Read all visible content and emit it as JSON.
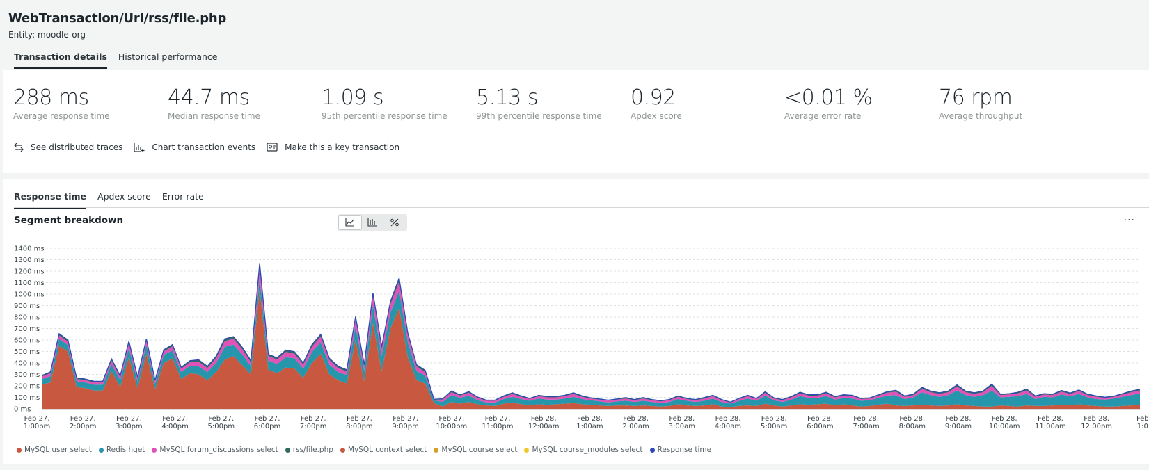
{
  "header": {
    "title": "WebTransaction/Uri/rss/file.php",
    "entity": "Entity: moodle-org",
    "tabs": [
      {
        "label": "Transaction details",
        "active": true
      },
      {
        "label": "Historical performance",
        "active": false
      }
    ]
  },
  "metrics": [
    {
      "value": "288 ms",
      "label": "Average response time"
    },
    {
      "value": "44.7 ms",
      "label": "Median response time"
    },
    {
      "value": "1.09 s",
      "label": "95th percentile response time"
    },
    {
      "value": "5.13 s",
      "label": "99th percentile response time"
    },
    {
      "value": "0.92",
      "label": "Apdex score"
    },
    {
      "value": "<0.01 %",
      "label": "Average error rate"
    },
    {
      "value": "76 rpm",
      "label": "Average throughput"
    }
  ],
  "actions": [
    {
      "label": "See distributed traces",
      "icon": "arrows-exchange-icon"
    },
    {
      "label": "Chart transaction events",
      "icon": "bar-chart-add-icon"
    },
    {
      "label": "Make this a key transaction",
      "icon": "key-transaction-icon"
    }
  ],
  "chart_tabs": [
    {
      "label": "Response time",
      "active": true
    },
    {
      "label": "Apdex score",
      "active": false
    },
    {
      "label": "Error rate",
      "active": false
    }
  ],
  "segment_title": "Segment breakdown",
  "view_toggles": [
    {
      "icon": "area-chart-icon",
      "active": true
    },
    {
      "icon": "bar-chart-icon",
      "active": false
    },
    {
      "icon": "percent-icon",
      "active": false
    }
  ],
  "more_label": "···",
  "colors": {
    "context_select": "#c8583f",
    "redis_hget": "#2596ab",
    "forum_discussions": "#e052b8",
    "rss_file": "#2e6b5e",
    "response_time": "#2e4ab5",
    "user_select": "#c8583f",
    "course_select": "#d1a12b",
    "course_modules_select": "#f2c72d"
  },
  "chart_data": {
    "type": "area",
    "y_unit": "ms",
    "ylim": [
      0,
      1400
    ],
    "yticks": [
      "0 ms",
      "100 ms",
      "200 ms",
      "300 ms",
      "400 ms",
      "500 ms",
      "600 ms",
      "700 ms",
      "800 ms",
      "900 ms",
      "1000 ms",
      "1100 ms",
      "1200 ms",
      "1300 ms",
      "1400 ms"
    ],
    "grid": true,
    "legend_placement": "bottom",
    "x_ticks": [
      [
        "Feb 27,",
        "1:00pm"
      ],
      [
        "Feb 27,",
        "2:00pm"
      ],
      [
        "Feb 27,",
        "3:00pm"
      ],
      [
        "Feb 27,",
        "4:00pm"
      ],
      [
        "Feb 27,",
        "5:00pm"
      ],
      [
        "Feb 27,",
        "6:00pm"
      ],
      [
        "Feb 27,",
        "7:00pm"
      ],
      [
        "Feb 27,",
        "8:00pm"
      ],
      [
        "Feb 27,",
        "9:00pm"
      ],
      [
        "Feb 27,",
        "10:00pm"
      ],
      [
        "Feb 27,",
        "11:00pm"
      ],
      [
        "Feb 28,",
        "12:00am"
      ],
      [
        "Feb 28,",
        "1:00am"
      ],
      [
        "Feb 28,",
        "2:00am"
      ],
      [
        "Feb 28,",
        "3:00am"
      ],
      [
        "Feb 28,",
        "4:00am"
      ],
      [
        "Feb 28,",
        "5:00am"
      ],
      [
        "Feb 28,",
        "6:00am"
      ],
      [
        "Feb 28,",
        "7:00am"
      ],
      [
        "Feb 28,",
        "8:00am"
      ],
      [
        "Feb 28,",
        "9:00am"
      ],
      [
        "Feb 28,",
        "10:00am"
      ],
      [
        "Feb 28,",
        "11:00am"
      ],
      [
        "Feb 28,",
        "12:00pm"
      ],
      [
        "Feb",
        "1:0"
      ]
    ],
    "series": [
      {
        "name": "MySQL context select",
        "values": [
          210,
          230,
          550,
          500,
          190,
          180,
          160,
          160,
          330,
          190,
          450,
          180,
          480,
          170,
          400,
          440,
          260,
          310,
          300,
          250,
          320,
          430,
          460,
          380,
          300,
          1040,
          340,
          310,
          360,
          350,
          270,
          400,
          480,
          300,
          250,
          220,
          600,
          240,
          750,
          330,
          700,
          880,
          450,
          250,
          220,
          50,
          20,
          60,
          45,
          60,
          40,
          30,
          25,
          45,
          55,
          40,
          30,
          40,
          35,
          40,
          45,
          50,
          40,
          35,
          30,
          25,
          30,
          30,
          25,
          30,
          25,
          20,
          25,
          40,
          30,
          25,
          30,
          40,
          20,
          15,
          25,
          30,
          25,
          45,
          30,
          20,
          30,
          40,
          35,
          40,
          45,
          30,
          40,
          30,
          20,
          25,
          35,
          45,
          30,
          25,
          30,
          35,
          30,
          25,
          30,
          40,
          30,
          25,
          20,
          20,
          30,
          25,
          20,
          30,
          25,
          25,
          30,
          35,
          30,
          40,
          30,
          25,
          20,
          20,
          25,
          30,
          35
        ]
      },
      {
        "name": "Redis hget",
        "values": [
          50,
          55,
          60,
          55,
          50,
          50,
          50,
          50,
          60,
          60,
          80,
          60,
          80,
          50,
          70,
          70,
          60,
          65,
          70,
          70,
          80,
          110,
          100,
          95,
          70,
          100,
          80,
          80,
          90,
          90,
          80,
          95,
          100,
          85,
          70,
          75,
          120,
          90,
          150,
          130,
          140,
          150,
          130,
          80,
          70,
          25,
          40,
          60,
          50,
          55,
          35,
          25,
          30,
          40,
          50,
          45,
          40,
          50,
          45,
          40,
          45,
          55,
          45,
          40,
          35,
          30,
          35,
          40,
          35,
          40,
          35,
          30,
          35,
          45,
          40,
          35,
          40,
          50,
          40,
          30,
          45,
          60,
          45,
          70,
          45,
          40,
          50,
          70,
          60,
          55,
          65,
          50,
          55,
          60,
          50,
          50,
          60,
          70,
          90,
          60,
          70,
          110,
          90,
          80,
          90,
          120,
          90,
          80,
          100,
          140,
          70,
          80,
          90,
          100,
          60,
          80,
          70,
          90,
          80,
          90,
          70,
          60,
          60,
          70,
          80,
          90,
          100
        ]
      },
      {
        "name": "MySQL forum_discussions select",
        "values": [
          20,
          25,
          30,
          30,
          20,
          20,
          20,
          20,
          30,
          25,
          40,
          25,
          35,
          20,
          30,
          35,
          30,
          30,
          40,
          35,
          40,
          50,
          50,
          45,
          35,
          80,
          40,
          40,
          45,
          40,
          35,
          45,
          50,
          40,
          35,
          30,
          60,
          40,
          80,
          60,
          70,
          80,
          60,
          40,
          30,
          5,
          20,
          25,
          20,
          25,
          20,
          15,
          15,
          20,
          25,
          20,
          15,
          20,
          20,
          20,
          20,
          25,
          20,
          15,
          15,
          15,
          15,
          20,
          15,
          20,
          15,
          15,
          15,
          20,
          15,
          15,
          20,
          20,
          15,
          10,
          15,
          20,
          15,
          25,
          15,
          15,
          20,
          25,
          20,
          20,
          25,
          20,
          20,
          20,
          15,
          15,
          20,
          25,
          30,
          20,
          20,
          30,
          25,
          25,
          25,
          35,
          25,
          25,
          25,
          40,
          20,
          20,
          25,
          30,
          20,
          20,
          20,
          25,
          20,
          25,
          20,
          20,
          15,
          15,
          20,
          25,
          25
        ]
      },
      {
        "name": "rss/file.php",
        "values": [
          10,
          12,
          15,
          15,
          10,
          10,
          10,
          10,
          15,
          12,
          20,
          12,
          15,
          10,
          15,
          15,
          12,
          15,
          18,
          15,
          18,
          20,
          20,
          18,
          15,
          50,
          15,
          15,
          18,
          18,
          15,
          18,
          20,
          15,
          15,
          15,
          25,
          15,
          30,
          20,
          25,
          30,
          20,
          15,
          15,
          3,
          8,
          10,
          8,
          10,
          8,
          6,
          6,
          8,
          10,
          8,
          6,
          8,
          8,
          8,
          8,
          10,
          8,
          6,
          6,
          6,
          6,
          8,
          6,
          8,
          6,
          6,
          6,
          8,
          6,
          6,
          8,
          8,
          6,
          4,
          6,
          8,
          6,
          10,
          6,
          6,
          8,
          10,
          8,
          8,
          10,
          8,
          8,
          8,
          6,
          6,
          8,
          10,
          12,
          8,
          8,
          12,
          10,
          10,
          10,
          14,
          10,
          10,
          10,
          16,
          8,
          8,
          10,
          12,
          8,
          8,
          8,
          10,
          8,
          10,
          8,
          8,
          6,
          6,
          8,
          10,
          10
        ]
      },
      {
        "name": "Response time",
        "values": [
          290,
          322,
          655,
          600,
          270,
          260,
          240,
          240,
          435,
          287,
          590,
          277,
          610,
          250,
          515,
          560,
          362,
          420,
          428,
          370,
          458,
          610,
          630,
          538,
          420,
          1270,
          475,
          445,
          513,
          498,
          400,
          558,
          650,
          440,
          370,
          340,
          805,
          385,
          1010,
          540,
          935,
          1140,
          660,
          385,
          335,
          83,
          88,
          155,
          123,
          150,
          103,
          76,
          76,
          113,
          140,
          113,
          91,
          118,
          108,
          108,
          118,
          140,
          113,
          96,
          86,
          76,
          86,
          98,
          81,
          98,
          81,
          71,
          81,
          113,
          91,
          81,
          98,
          118,
          81,
          59,
          91,
          118,
          91,
          150,
          96,
          81,
          108,
          145,
          123,
          123,
          145,
          108,
          123,
          118,
          91,
          96,
          123,
          150,
          162,
          113,
          128,
          187,
          155,
          140,
          155,
          209,
          155,
          140,
          155,
          216,
          128,
          133,
          145,
          172,
          113,
          133,
          128,
          160,
          138,
          165,
          128,
          113,
          101,
          111,
          133,
          155,
          170
        ]
      },
      {
        "name": "MySQL user select",
        "values": []
      },
      {
        "name": "MySQL course select",
        "values": []
      },
      {
        "name": "MySQL course_modules select",
        "values": []
      }
    ]
  },
  "legend": [
    {
      "label": "MySQL user select",
      "color": "#c8583f"
    },
    {
      "label": "Redis hget",
      "color": "#2596ab"
    },
    {
      "label": "MySQL forum_discussions select",
      "color": "#e052b8"
    },
    {
      "label": "rss/file.php",
      "color": "#2e6b5e"
    },
    {
      "label": "MySQL context select",
      "color": "#c8583f"
    },
    {
      "label": "MySQL course select",
      "color": "#d1a12b"
    },
    {
      "label": "MySQL course_modules select",
      "color": "#f2c72d"
    },
    {
      "label": "Response time",
      "color": "#2e4ab5"
    }
  ]
}
